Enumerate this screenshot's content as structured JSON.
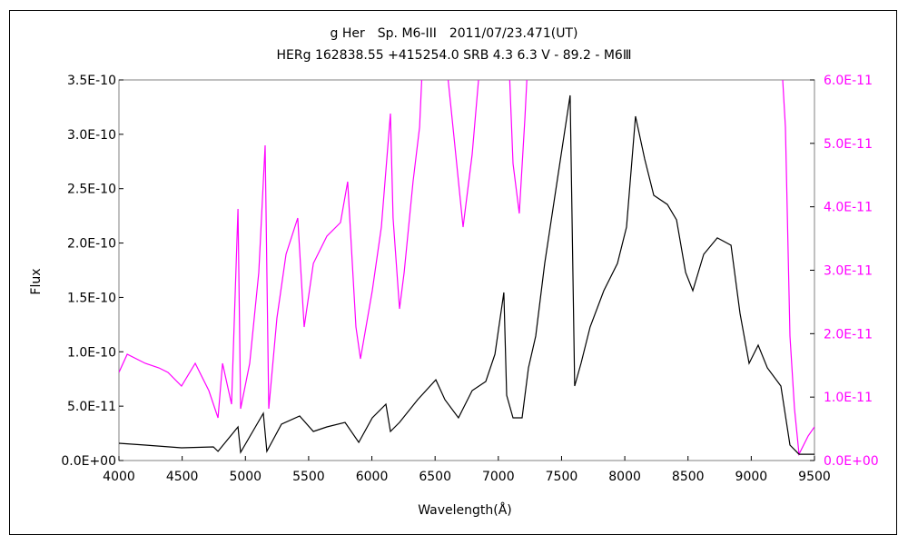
{
  "chart_data": {
    "type": "line",
    "title": "g Her　Sp. M6-III　2011/07/23.471(UT)",
    "subtitle": "HERg 162838.55 +415254.0 SRB 4.3 6.3 V - 89.2 - M6Ⅲ",
    "xlabel": "Wavelength(Å)",
    "ylabel": "Flux",
    "xlim": [
      4000,
      9500
    ],
    "ylim": [
      0,
      3.5e-10
    ],
    "y2lim": [
      0,
      6e-11
    ],
    "grid": false,
    "xticks": [
      "4000",
      "4500",
      "5000",
      "5500",
      "6000",
      "6500",
      "7000",
      "7500",
      "8000",
      "8500",
      "9000",
      "9500"
    ],
    "yticks": [
      "0.0E+00",
      "5.0E-11",
      "1.0E-10",
      "1.5E-10",
      "2.0E-10",
      "2.5E-10",
      "3.0E-10",
      "3.5E-10"
    ],
    "y2ticks": [
      "0.0E+00",
      "1.0E-11",
      "2.0E-11",
      "3.0E-11",
      "4.0E-11",
      "5.0E-11",
      "6.0E-11"
    ],
    "series": [
      {
        "axis": "left",
        "color": "#000000",
        "x": [
          4000,
          4208,
          4495,
          4747,
          4783,
          4941,
          4962,
          5142,
          5170,
          5285,
          5429,
          5537,
          5644,
          5788,
          5896,
          6003,
          6111,
          6147,
          6219,
          6362,
          6506,
          6578,
          6685,
          6793,
          6901,
          6973,
          7044,
          7066,
          7116,
          7188,
          7238,
          7296,
          7367,
          7475,
          7568,
          7604,
          7654,
          7726,
          7834,
          7942,
          8014,
          8085,
          8157,
          8229,
          8337,
          8409,
          8481,
          8538,
          8624,
          8732,
          8840,
          8911,
          8983,
          9055,
          9127,
          9234,
          9306,
          9378,
          9500
        ],
        "y": [
          1.59e-11,
          1.42e-11,
          1.17e-11,
          1.25e-11,
          8.4e-12,
          3.09e-11,
          7.5e-12,
          4.34e-11,
          8.4e-12,
          3.34e-11,
          4.09e-11,
          2.67e-11,
          3.09e-11,
          3.51e-11,
          1.67e-11,
          3.93e-11,
          5.18e-11,
          2.67e-11,
          3.51e-11,
          5.6e-11,
          7.43e-11,
          5.6e-11,
          3.93e-11,
          6.43e-11,
          7.27e-11,
          9.77e-11,
          1.545e-10,
          6.01e-11,
          3.93e-11,
          3.93e-11,
          8.52e-11,
          1.144e-10,
          1.813e-10,
          2.648e-10,
          3.358e-10,
          6.85e-11,
          8.94e-11,
          1.228e-10,
          1.562e-10,
          1.813e-10,
          2.147e-10,
          3.166e-10,
          2.773e-10,
          2.439e-10,
          2.355e-10,
          2.213e-10,
          1.729e-10,
          1.562e-10,
          1.896e-10,
          2.047e-10,
          1.98e-10,
          1.353e-10,
          8.94e-11,
          1.061e-10,
          8.52e-11,
          6.85e-11,
          1.42e-11,
          5.8e-12,
          5.8e-12
        ]
      },
      {
        "axis": "right",
        "color": "#ff00ff",
        "x": [
          4000,
          4065,
          4208,
          4316,
          4388,
          4495,
          4603,
          4711,
          4783,
          4819,
          4890,
          4941,
          4962,
          5034,
          5106,
          5156,
          5185,
          5249,
          5321,
          5414,
          5465,
          5537,
          5644,
          5752,
          5809,
          5874,
          5910,
          6003,
          6075,
          6147,
          6168,
          6219,
          6255,
          6326,
          6377,
          6405,
          6470,
          6578,
          6649,
          6721,
          6793,
          6865,
          7080,
          7116,
          7166,
          7210,
          7238,
          9234,
          9270,
          9306,
          9342,
          9378,
          9450,
          9500
        ],
        "y": [
          1.389e-11,
          1.675e-11,
          1.532e-11,
          1.461e-11,
          1.389e-11,
          1.174e-11,
          1.532e-11,
          1.103e-11,
          6.73e-12,
          1.532e-11,
          8.88e-12,
          3.967e-11,
          8.16e-12,
          1.532e-11,
          2.964e-11,
          4.969e-11,
          8.16e-12,
          2.248e-11,
          3.251e-11,
          3.823e-11,
          2.105e-11,
          3.107e-11,
          3.537e-11,
          3.752e-11,
          4.396e-11,
          2.105e-11,
          1.604e-11,
          2.678e-11,
          3.68e-11,
          5.47e-11,
          3.823e-11,
          2.391e-11,
          2.964e-11,
          4.396e-11,
          5.255e-11,
          6.5e-11,
          6.5e-11,
          6.5e-11,
          5.112e-11,
          3.68e-11,
          4.826e-11,
          6.5e-11,
          6.5e-11,
          4.683e-11,
          3.895e-11,
          5.398e-11,
          6.5e-11,
          6.5e-11,
          5.255e-11,
          1.962e-11,
          8.16e-12,
          1e-12,
          3.87e-12,
          5.3e-12
        ]
      }
    ]
  }
}
